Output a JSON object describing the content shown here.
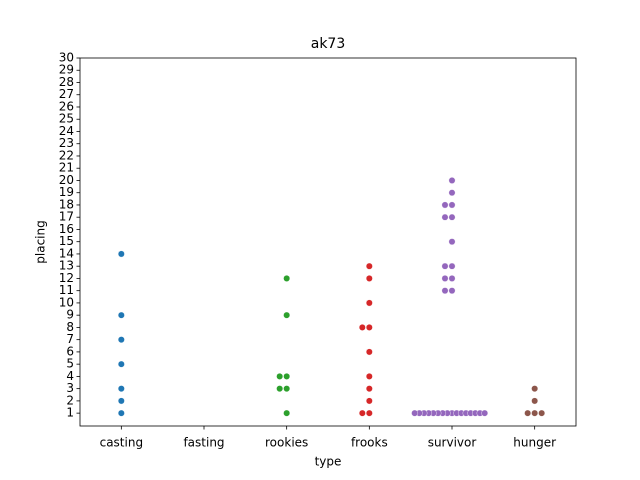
{
  "chart_data": {
    "type": "swarm",
    "title": "ak73",
    "x_label": "type",
    "y_label": "placing",
    "groups": [
      {
        "category": "casting",
        "color": "#1f77b4",
        "values": [
          14,
          9,
          7,
          5,
          3,
          2,
          1
        ]
      },
      {
        "category": "fasting",
        "values": []
      },
      {
        "category": "rookies",
        "color": "#2ca02c",
        "values": [
          12,
          9,
          4,
          4,
          3,
          3,
          1
        ]
      },
      {
        "category": "frooks",
        "color": "#d62728",
        "values": [
          13,
          12,
          10,
          8,
          8,
          6,
          4,
          3,
          2,
          1,
          1
        ]
      },
      {
        "category": "survivor",
        "color": "#9467bd",
        "values": [
          20,
          19,
          18,
          18,
          17,
          17,
          15,
          13,
          13,
          12,
          12,
          11,
          11,
          1,
          1,
          1,
          1,
          1,
          1,
          1,
          1,
          1,
          1,
          1,
          1,
          1,
          1,
          1,
          1
        ]
      },
      {
        "category": "hunger",
        "color": "#8c564b",
        "values": [
          3,
          2,
          1,
          1,
          1
        ]
      }
    ],
    "ylim": [
      -0.05,
      30
    ],
    "yticks": [
      1,
      2,
      3,
      4,
      5,
      6,
      7,
      8,
      9,
      10,
      11,
      12,
      13,
      14,
      15,
      16,
      17,
      18,
      19,
      20,
      21,
      22,
      23,
      24,
      25,
      26,
      27,
      28,
      29,
      30
    ]
  }
}
